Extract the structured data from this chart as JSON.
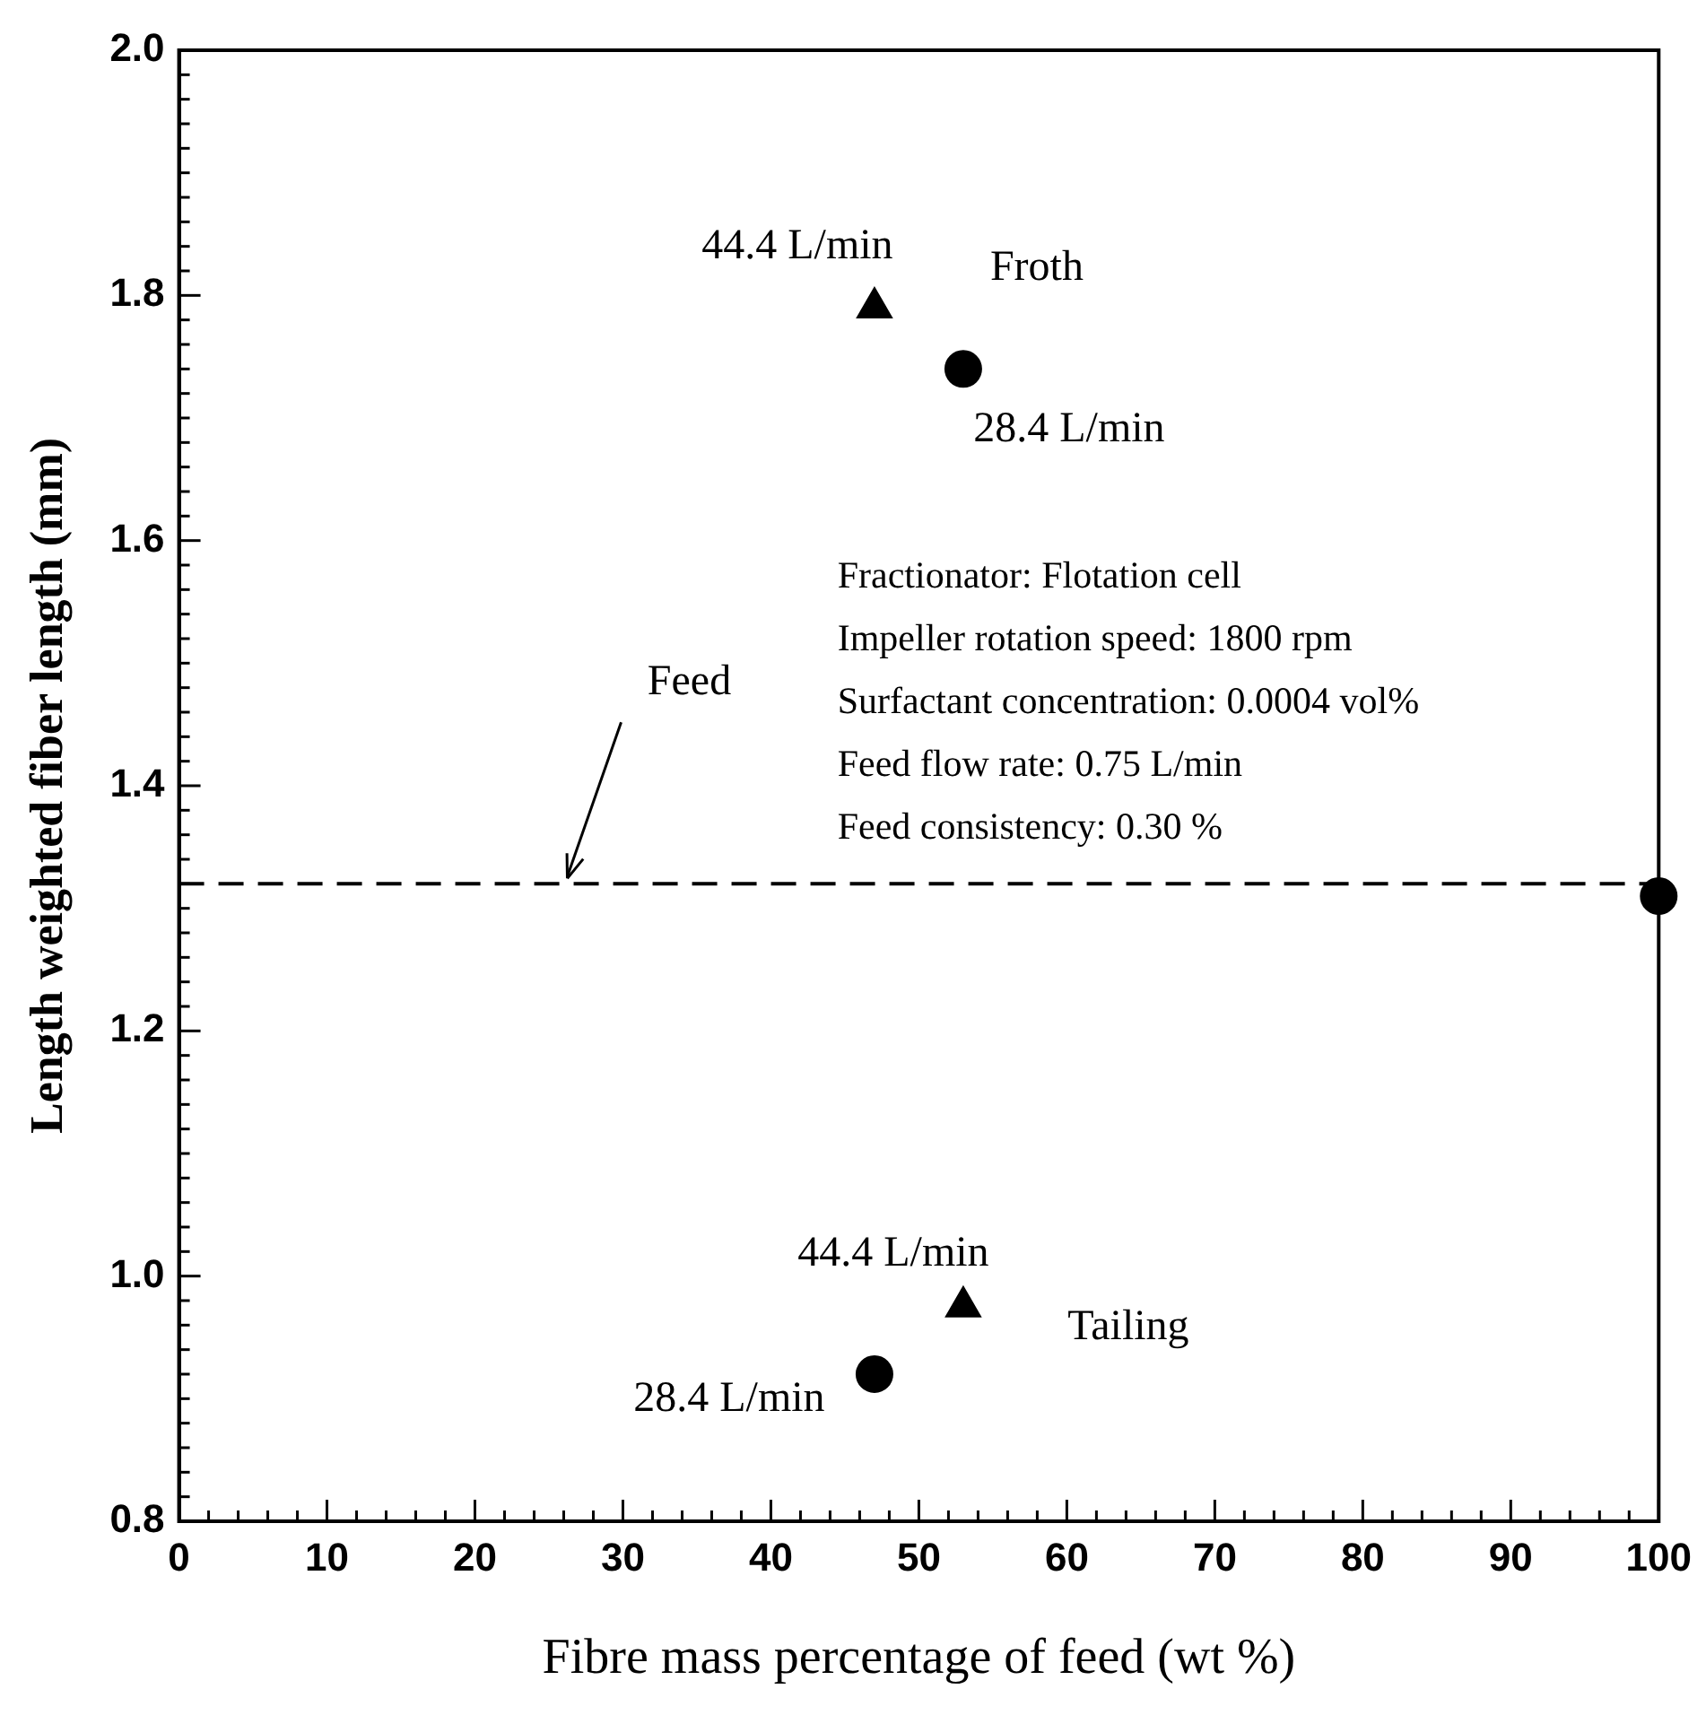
{
  "chart_data": {
    "type": "scatter",
    "xlabel": "Fibre mass percentage of feed (wt %)",
    "ylabel": "Length weighted fiber length (mm)",
    "xlim": [
      0,
      100
    ],
    "xticks": [
      0,
      10,
      20,
      30,
      40,
      50,
      60,
      70,
      80,
      90,
      100
    ],
    "ylim": [
      0.8,
      2.0
    ],
    "yticks": [
      {
        "value": 0.8,
        "label": "0.8"
      },
      {
        "value": 1.0,
        "label": "1.0"
      },
      {
        "value": 1.2,
        "label": "1.2"
      },
      {
        "value": 1.4,
        "label": "1.4"
      },
      {
        "value": 1.6,
        "label": "1.6"
      },
      {
        "value": 1.8,
        "label": "1.8"
      },
      {
        "value": 2.0,
        "label": "2.0"
      }
    ],
    "grid": false,
    "legend": false,
    "series": [
      {
        "x": [
          47,
          53
        ],
        "values": [
          1.79,
          0.975
        ],
        "color": "#000000",
        "marker": "triangle"
      },
      {
        "x": [
          53,
          47
        ],
        "values": [
          1.74,
          0.92
        ],
        "color": "#000000",
        "marker": "circle"
      },
      {
        "x": [
          100
        ],
        "values": [
          1.31
        ],
        "color": "#000000",
        "marker": "circle"
      }
    ],
    "ref_lines": [
      {
        "axis": "y",
        "value": 1.32,
        "label": "Feed",
        "line_style": "dashed",
        "color": "#000000"
      }
    ],
    "annotations": [
      "44.4 L/min",
      "Froth",
      "28.4 L/min",
      "44.4 L/min",
      "Tailing",
      "28.4 L/min",
      "Fractionator: Flotation cell",
      "Impeller rotation speed: 1800 rpm",
      "Surfactant concentration: 0.0004 vol%",
      "Feed flow rate: 0.75 L/min",
      "Feed consistency: 0.30 %"
    ]
  }
}
